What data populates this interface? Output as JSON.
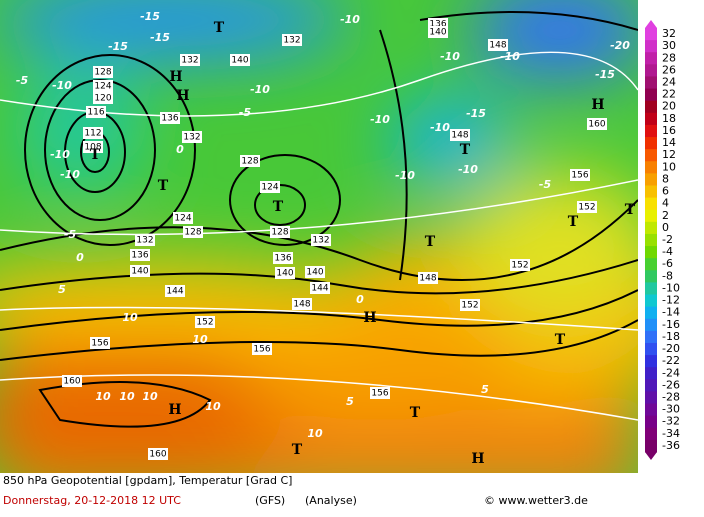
{
  "header": {
    "title": "850 hPa Geopotential [gpdam], Temperatur [Grad C]",
    "date": "Donnerstag, 20-12-2018  12 UTC",
    "model": "(GFS)",
    "run": "(Analyse)",
    "source": "© www.wetter3.de"
  },
  "colorbar": {
    "ticks": [
      32,
      30,
      28,
      26,
      24,
      22,
      20,
      18,
      16,
      14,
      12,
      10,
      8,
      6,
      4,
      2,
      0,
      -2,
      -4,
      -6,
      -8,
      -10,
      -12,
      -14,
      -16,
      -18,
      -20,
      -22,
      -24,
      -26,
      -28,
      -30,
      -32,
      -34,
      -36
    ],
    "colors": [
      "#e040e0",
      "#d030c8",
      "#c020a8",
      "#b01890",
      "#a01070",
      "#900050",
      "#a00020",
      "#c00018",
      "#e01010",
      "#f03000",
      "#f85800",
      "#f88000",
      "#f8a000",
      "#f8c000",
      "#f8e000",
      "#e8f000",
      "#c0e800",
      "#98e000",
      "#70d800",
      "#48d030",
      "#30c860",
      "#20c8a0",
      "#10c8d0",
      "#10b0f0",
      "#2090f8",
      "#3070f8",
      "#3050f0",
      "#3030e0",
      "#4020c8",
      "#5018b8",
      "#6010a8",
      "#700898",
      "#780088",
      "#800078",
      "#780068"
    ]
  },
  "map": {
    "labels": [
      "-15",
      "-15",
      "-15",
      "-10",
      "136",
      "140",
      "148",
      "-20",
      "-15",
      "-10",
      "-10",
      "-5",
      "-10",
      "128",
      "124",
      "120",
      "116",
      "112",
      "108",
      "-10",
      "-10",
      "132",
      "140",
      "132",
      "-10",
      "-5",
      "136",
      "132",
      "0",
      "128",
      "124",
      "128",
      "132",
      "136",
      "140",
      "144",
      "148",
      "152",
      "156",
      "156",
      "160",
      "160",
      "156",
      "152",
      "148",
      "152",
      "-10",
      "148",
      "-15",
      "-10",
      "-10",
      "-10",
      "-5",
      "156",
      "160",
      "152",
      "10",
      "10",
      "10",
      "10",
      "10",
      "10",
      "10",
      "5",
      "5",
      "0",
      "-5",
      "0",
      "5",
      "124",
      "128",
      "132",
      "136",
      "140",
      "144",
      "140",
      "T",
      "T",
      "T",
      "T",
      "H",
      "H",
      "H",
      "T",
      "T",
      "H",
      "T",
      "H",
      "T",
      "T",
      "H",
      "T",
      "T"
    ]
  }
}
